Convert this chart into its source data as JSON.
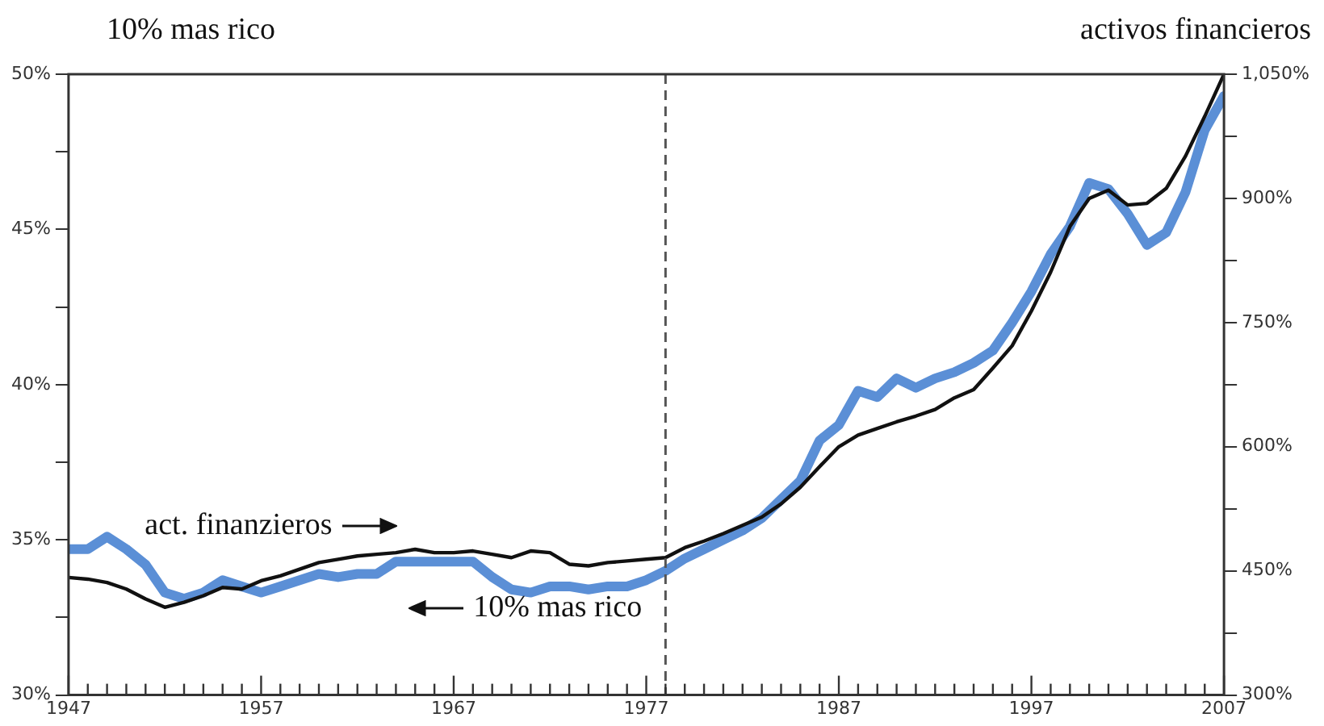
{
  "chart_data": {
    "type": "line",
    "ylabel": "10% mas rico",
    "y2label": "activos financieros",
    "x": [
      1947,
      1948,
      1949,
      1950,
      1951,
      1952,
      1953,
      1954,
      1955,
      1956,
      1957,
      1958,
      1959,
      1960,
      1961,
      1962,
      1963,
      1964,
      1965,
      1966,
      1967,
      1968,
      1969,
      1970,
      1971,
      1972,
      1973,
      1974,
      1975,
      1976,
      1977,
      1978,
      1979,
      1980,
      1981,
      1982,
      1983,
      1984,
      1985,
      1986,
      1987,
      1988,
      1989,
      1990,
      1991,
      1992,
      1993,
      1994,
      1995,
      1996,
      1997,
      1998,
      1999,
      2000,
      2001,
      2002,
      2003,
      2004,
      2005,
      2006,
      2007
    ],
    "series": [
      {
        "color": "#5b8fd6",
        "values": [
          34.7,
          34.7,
          35.1,
          34.7,
          34.2,
          33.3,
          33.1,
          33.3,
          33.7,
          33.5,
          33.3,
          33.5,
          33.7,
          33.9,
          33.8,
          33.9,
          33.9,
          34.3,
          34.3,
          34.3,
          34.3,
          34.3,
          33.8,
          33.4,
          33.3,
          33.5,
          33.5,
          33.4,
          33.5,
          33.5,
          33.7,
          34.0,
          34.4,
          34.7,
          35.0,
          35.3,
          35.7,
          36.3,
          36.9,
          38.2,
          38.7,
          39.8,
          39.6,
          40.2,
          39.9,
          40.2,
          40.4,
          40.7,
          41.1,
          42.0,
          43.0,
          44.2,
          45.1,
          46.5,
          46.3,
          45.5,
          44.5,
          44.9,
          46.2,
          48.2,
          49.3
        ]
      },
      {
        "color": "#111111",
        "axis": "y2",
        "values": [
          442,
          440,
          436,
          428,
          416,
          406,
          412,
          420,
          430,
          428,
          438,
          444,
          452,
          460,
          464,
          468,
          470,
          472,
          476,
          472,
          472,
          474,
          470,
          466,
          474,
          472,
          458,
          456,
          460,
          462,
          464,
          466,
          478,
          486,
          495,
          505,
          515,
          531,
          551,
          576,
          600,
          614,
          622,
          630,
          637,
          645,
          659,
          669,
          695,
          722,
          764,
          811,
          866,
          900,
          910,
          892,
          894,
          912,
          951,
          999,
          1050
        ]
      }
    ],
    "xlim": [
      1947,
      2007
    ],
    "xticks": [
      1947,
      {
        "value": 1948,
        "label": null
      },
      {
        "value": 1949,
        "label": null
      },
      {
        "value": 1950,
        "label": null
      },
      {
        "value": 1951,
        "label": null
      },
      {
        "value": 1952,
        "label": null
      },
      {
        "value": 1953,
        "label": null
      },
      {
        "value": 1954,
        "label": null
      },
      {
        "value": 1955,
        "label": null
      },
      {
        "value": 1956,
        "label": null
      },
      1957,
      {
        "value": 1958,
        "label": null
      },
      {
        "value": 1959,
        "label": null
      },
      {
        "value": 1960,
        "label": null
      },
      {
        "value": 1961,
        "label": null
      },
      {
        "value": 1962,
        "label": null
      },
      {
        "value": 1963,
        "label": null
      },
      {
        "value": 1964,
        "label": null
      },
      {
        "value": 1965,
        "label": null
      },
      {
        "value": 1966,
        "label": null
      },
      1967,
      {
        "value": 1968,
        "label": null
      },
      {
        "value": 1969,
        "label": null
      },
      {
        "value": 1970,
        "label": null
      },
      {
        "value": 1971,
        "label": null
      },
      {
        "value": 1972,
        "label": null
      },
      {
        "value": 1973,
        "label": null
      },
      {
        "value": 1974,
        "label": null
      },
      {
        "value": 1975,
        "label": null
      },
      {
        "value": 1976,
        "label": null
      },
      1977,
      {
        "value": 1978,
        "label": null
      },
      {
        "value": 1979,
        "label": null
      },
      {
        "value": 1980,
        "label": null
      },
      {
        "value": 1981,
        "label": null
      },
      {
        "value": 1982,
        "label": null
      },
      {
        "value": 1983,
        "label": null
      },
      {
        "value": 1984,
        "label": null
      },
      {
        "value": 1985,
        "label": null
      },
      {
        "value": 1986,
        "label": null
      },
      1987,
      {
        "value": 1988,
        "label": null
      },
      {
        "value": 1989,
        "label": null
      },
      {
        "value": 1990,
        "label": null
      },
      {
        "value": 1991,
        "label": null
      },
      {
        "value": 1992,
        "label": null
      },
      {
        "value": 1993,
        "label": null
      },
      {
        "value": 1994,
        "label": null
      },
      {
        "value": 1995,
        "label": null
      },
      {
        "value": 1996,
        "label": null
      },
      1997,
      {
        "value": 1998,
        "label": null
      },
      {
        "value": 1999,
        "label": null
      },
      {
        "value": 2000,
        "label": null
      },
      {
        "value": 2001,
        "label": null
      },
      {
        "value": 2002,
        "label": null
      },
      {
        "value": 2003,
        "label": null
      },
      {
        "value": 2004,
        "label": null
      },
      {
        "value": 2005,
        "label": null
      },
      {
        "value": 2006,
        "label": null
      },
      2007
    ],
    "ylim": [
      30,
      50
    ],
    "yticks": [
      {
        "value": 30,
        "label": "30%"
      },
      {
        "value": 32.5,
        "label": null
      },
      {
        "value": 35,
        "label": "35%"
      },
      {
        "value": 37.5,
        "label": null
      },
      {
        "value": 40,
        "label": "40%"
      },
      {
        "value": 42.5,
        "label": null
      },
      {
        "value": 45,
        "label": "45%"
      },
      {
        "value": 47.5,
        "label": null
      },
      {
        "value": 50,
        "label": "50%"
      }
    ],
    "y2lim": [
      300,
      1050
    ],
    "y2ticks": [
      {
        "value": 300,
        "label": "300%"
      },
      {
        "value": 375,
        "label": null
      },
      {
        "value": 450,
        "label": "450%"
      },
      {
        "value": 525,
        "label": null
      },
      {
        "value": 600,
        "label": "600%"
      },
      {
        "value": 675,
        "label": null
      },
      {
        "value": 750,
        "label": "750%"
      },
      {
        "value": 825,
        "label": null
      },
      {
        "value": 900,
        "label": "900%"
      },
      {
        "value": 975,
        "label": null
      },
      {
        "value": 1050,
        "label": "1,050%"
      }
    ],
    "ref_lines": [
      {
        "axis": "x",
        "value": 1978,
        "color": "#555555",
        "line_style": "dashed"
      }
    ],
    "annotations": [
      "act. finanzieros",
      "10% mas rico"
    ],
    "grid": false,
    "legend": false,
    "marker": "none",
    "line_style": "solid"
  }
}
